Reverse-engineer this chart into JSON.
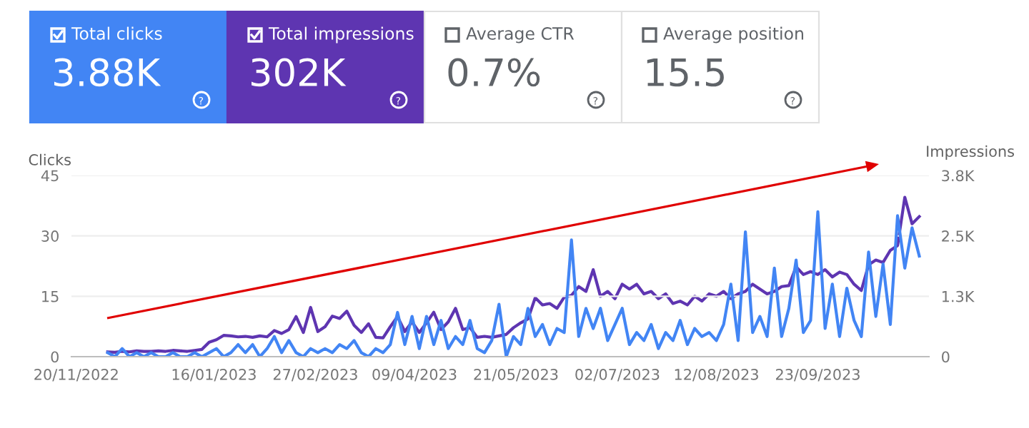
{
  "chart_data": [
    {
      "type": "other",
      "categories": [
        "Total clicks",
        "Total impressions",
        "Average CTR",
        "Average position"
      ],
      "value_labels": [
        "3.88K",
        "302K",
        "0.7%",
        "15.5"
      ],
      "colors": [
        "#4285f4",
        "#5e35b1",
        "#ffffff",
        "#ffffff"
      ]
    },
    {
      "type": "line",
      "ylabel": "Clicks",
      "y2label": "Impressions",
      "x": [
        "2022-12-03",
        "2022-12-06",
        "2022-12-09",
        "2022-12-12",
        "2022-12-15",
        "2022-12-18",
        "2022-12-21",
        "2022-12-24",
        "2022-12-27",
        "2022-12-30",
        "2023-01-02",
        "2023-01-05",
        "2023-01-08",
        "2023-01-11",
        "2023-01-14",
        "2023-01-17",
        "2023-01-20",
        "2023-01-23",
        "2023-01-26",
        "2023-01-29",
        "2023-02-01",
        "2023-02-04",
        "2023-02-07",
        "2023-02-10",
        "2023-02-13",
        "2023-02-16",
        "2023-02-19",
        "2023-02-22",
        "2023-02-25",
        "2023-02-28",
        "2023-03-03",
        "2023-03-06",
        "2023-03-09",
        "2023-03-12",
        "2023-03-15",
        "2023-03-18",
        "2023-03-21",
        "2023-03-24",
        "2023-03-27",
        "2023-03-30",
        "2023-04-02",
        "2023-04-05",
        "2023-04-08",
        "2023-04-11",
        "2023-04-14",
        "2023-04-17",
        "2023-04-20",
        "2023-04-23",
        "2023-04-26",
        "2023-04-29",
        "2023-05-02",
        "2023-05-05",
        "2023-05-08",
        "2023-05-11",
        "2023-05-14",
        "2023-05-17",
        "2023-05-20",
        "2023-05-23",
        "2023-05-26",
        "2023-05-29",
        "2023-06-01",
        "2023-06-04",
        "2023-06-07",
        "2023-06-10",
        "2023-06-13",
        "2023-06-16",
        "2023-06-19",
        "2023-06-22",
        "2023-06-25",
        "2023-06-28",
        "2023-07-01",
        "2023-07-04",
        "2023-07-07",
        "2023-07-10",
        "2023-07-13",
        "2023-07-16",
        "2023-07-19",
        "2023-07-22",
        "2023-07-25",
        "2023-07-28",
        "2023-07-31",
        "2023-08-03",
        "2023-08-06",
        "2023-08-09",
        "2023-08-12",
        "2023-08-15",
        "2023-08-18",
        "2023-08-21",
        "2023-08-24",
        "2023-08-27",
        "2023-08-30",
        "2023-09-02",
        "2023-09-05",
        "2023-09-08",
        "2023-09-11",
        "2023-09-14",
        "2023-09-17",
        "2023-09-20",
        "2023-09-23",
        "2023-09-26",
        "2023-09-29",
        "2023-10-02",
        "2023-10-05",
        "2023-10-08",
        "2023-10-11",
        "2023-10-14",
        "2023-10-17",
        "2023-10-20",
        "2023-10-23",
        "2023-10-26",
        "2023-10-29",
        "2023-11-01",
        "2023-11-04"
      ],
      "series": [
        {
          "color": "#4285f4",
          "values": [
            1,
            0,
            2,
            0,
            1,
            0,
            1,
            0,
            0,
            1,
            0,
            0,
            1,
            0,
            1,
            2,
            0,
            1,
            3,
            1,
            3,
            0,
            2,
            5,
            1,
            4,
            1,
            0,
            2,
            1,
            2,
            1,
            3,
            2,
            4,
            1,
            0,
            2,
            1,
            3,
            11,
            3,
            10,
            2,
            10,
            3,
            9,
            2,
            5,
            3,
            9,
            2,
            1,
            4,
            13,
            0,
            5,
            3,
            12,
            5,
            8,
            3,
            7,
            6,
            29,
            5,
            12,
            7,
            12,
            4,
            8,
            12,
            3,
            6,
            4,
            8,
            2,
            6,
            4,
            9,
            3,
            7,
            5,
            6,
            4,
            8,
            18,
            4,
            31,
            6,
            10,
            5,
            22,
            5,
            12,
            24,
            6,
            9,
            36,
            7,
            18,
            5,
            17,
            9,
            5,
            26,
            10,
            23,
            8,
            35,
            22,
            32,
            25
          ]
        },
        {
          "color": "#5e35b1",
          "axis": "y2",
          "values": [
            100,
            90,
            110,
            100,
            120,
            110,
            110,
            120,
            110,
            130,
            120,
            110,
            130,
            150,
            300,
            350,
            440,
            430,
            410,
            420,
            400,
            430,
            410,
            540,
            480,
            560,
            830,
            500,
            1020,
            520,
            620,
            840,
            790,
            940,
            650,
            500,
            680,
            400,
            390,
            620,
            830,
            520,
            720,
            500,
            700,
            920,
            560,
            720,
            1000,
            560,
            600,
            400,
            420,
            400,
            430,
            460,
            600,
            700,
            780,
            1220,
            1070,
            1100,
            1000,
            1230,
            1270,
            1450,
            1350,
            1800,
            1250,
            1350,
            1200,
            1500,
            1400,
            1500,
            1300,
            1350,
            1200,
            1300,
            1100,
            1150,
            1070,
            1250,
            1150,
            1300,
            1250,
            1350,
            1200,
            1300,
            1350,
            1500,
            1400,
            1300,
            1350,
            1450,
            1470,
            1860,
            1700,
            1760,
            1700,
            1800,
            1650,
            1750,
            1700,
            1500,
            1370,
            1900,
            2000,
            1950,
            2200,
            2300,
            3300,
            2750,
            2900
          ]
        }
      ],
      "xlim": [
        "2022-11-18",
        "2023-11-08"
      ],
      "xticks": [
        {
          "value": "2022-11-20",
          "label": "20/11/2022"
        },
        {
          "value": "2023-01-16",
          "label": "16/01/2023"
        },
        {
          "value": "2023-02-27",
          "label": "27/02/2023"
        },
        {
          "value": "2023-04-09",
          "label": "09/04/2023"
        },
        {
          "value": "2023-05-21",
          "label": "21/05/2023"
        },
        {
          "value": "2023-07-02",
          "label": "02/07/2023"
        },
        {
          "value": "2023-08-12",
          "label": "12/08/2023"
        },
        {
          "value": "2023-09-23",
          "label": "23/09/2023"
        }
      ],
      "ylim": [
        0,
        45
      ],
      "yticks": [
        0,
        15,
        30,
        45
      ],
      "y2lim": [
        0,
        3750
      ],
      "y2ticks": [
        0,
        {
          "value": 1250,
          "label": "1.3K"
        },
        {
          "value": 2500,
          "label": "2.5K"
        },
        {
          "value": 3750,
          "label": "3.8K"
        }
      ],
      "grid": "y",
      "marker": "none",
      "line_style": "solid"
    }
  ]
}
